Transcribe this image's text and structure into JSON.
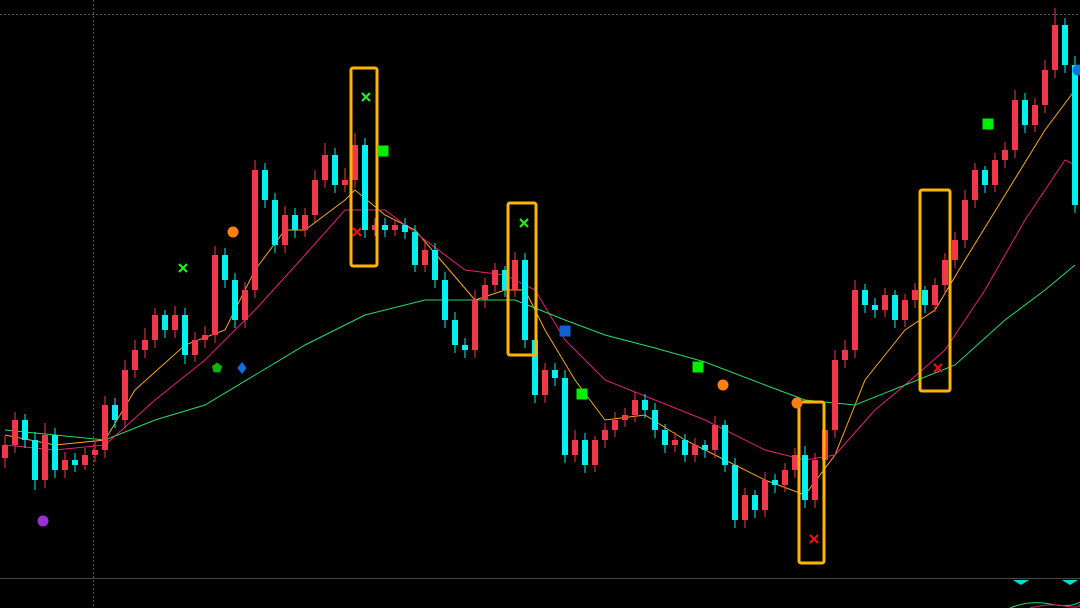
{
  "chart_data": {
    "type": "candlestick",
    "xlim": [
      -0.5,
      107.5
    ],
    "ylim": [
      0,
      608
    ],
    "up_color": "#f0384a",
    "down_color": "#00f0f0",
    "open": [
      150,
      163,
      188,
      168,
      128,
      173,
      138,
      148,
      143,
      153,
      158,
      203,
      188,
      238,
      258,
      268,
      293,
      278,
      293,
      253,
      268,
      273,
      353,
      328,
      288,
      318,
      438,
      408,
      363,
      393,
      378,
      393,
      428,
      453,
      423,
      428,
      463,
      378,
      383,
      378,
      383,
      376,
      343,
      358,
      328,
      288,
      263,
      258,
      308,
      323,
      338,
      318,
      348,
      268,
      213,
      238,
      230,
      153,
      168,
      143,
      168,
      178,
      188,
      193,
      208,
      198,
      178,
      163,
      168,
      153,
      163,
      158,
      183,
      143,
      88,
      113,
      98,
      128,
      123,
      138,
      153,
      108,
      148,
      178,
      248,
      258,
      318,
      303,
      298,
      313,
      288,
      308,
      318,
      303,
      323,
      348,
      368,
      408,
      438,
      423,
      448,
      458,
      508,
      483,
      503,
      538,
      583,
      543
    ],
    "high": [
      172,
      196,
      194,
      176,
      185,
      180,
      156,
      155,
      160,
      166,
      212,
      210,
      248,
      268,
      280,
      300,
      298,
      302,
      300,
      276,
      282,
      362,
      360,
      335,
      326,
      448,
      445,
      415,
      402,
      400,
      400,
      438,
      465,
      460,
      440,
      475,
      470,
      390,
      390,
      388,
      390,
      383,
      366,
      365,
      336,
      296,
      270,
      318,
      330,
      345,
      342,
      356,
      355,
      275,
      245,
      245,
      238,
      178,
      175,
      172,
      185,
      196,
      200,
      216,
      214,
      205,
      184,
      176,
      174,
      170,
      168,
      192,
      188,
      150,
      120,
      118,
      136,
      134,
      145,
      160,
      162,
      155,
      185,
      258,
      268,
      328,
      324,
      310,
      320,
      318,
      314,
      325,
      322,
      330,
      355,
      376,
      418,
      445,
      442,
      455,
      466,
      518,
      515,
      510,
      548,
      600,
      590,
      552
    ],
    "low": [
      140,
      155,
      160,
      118,
      120,
      130,
      130,
      136,
      138,
      146,
      150,
      180,
      180,
      230,
      250,
      260,
      270,
      270,
      244,
      246,
      260,
      265,
      320,
      280,
      280,
      310,
      400,
      355,
      355,
      370,
      371,
      386,
      420,
      415,
      416,
      420,
      370,
      372,
      371,
      372,
      369,
      336,
      336,
      320,
      280,
      255,
      250,
      250,
      300,
      316,
      311,
      311,
      260,
      205,
      205,
      222,
      145,
      146,
      135,
      136,
      160,
      171,
      181,
      186,
      190,
      170,
      155,
      156,
      146,
      146,
      150,
      150,
      136,
      80,
      80,
      90,
      91,
      115,
      116,
      130,
      100,
      100,
      140,
      170,
      240,
      250,
      295,
      290,
      291,
      280,
      281,
      300,
      295,
      296,
      315,
      340,
      360,
      400,
      415,
      416,
      440,
      450,
      475,
      476,
      495,
      530,
      535,
      395
    ],
    "close": [
      163,
      188,
      168,
      128,
      173,
      138,
      148,
      143,
      153,
      158,
      203,
      188,
      238,
      258,
      268,
      293,
      278,
      293,
      253,
      268,
      273,
      353,
      328,
      288,
      318,
      438,
      408,
      363,
      393,
      378,
      393,
      428,
      453,
      423,
      428,
      463,
      378,
      383,
      378,
      383,
      376,
      343,
      358,
      328,
      288,
      263,
      258,
      308,
      323,
      338,
      318,
      348,
      268,
      213,
      238,
      230,
      153,
      168,
      143,
      168,
      178,
      188,
      193,
      208,
      198,
      178,
      163,
      168,
      153,
      163,
      158,
      183,
      143,
      88,
      113,
      98,
      128,
      123,
      138,
      153,
      108,
      148,
      178,
      248,
      258,
      318,
      303,
      298,
      313,
      288,
      308,
      318,
      303,
      323,
      348,
      368,
      408,
      438,
      423,
      448,
      458,
      508,
      483,
      503,
      538,
      583,
      543,
      403
    ],
    "lines": [
      {
        "color": "#f5a623",
        "x": [
          0,
          5,
          10,
          13,
          18,
          22,
          25,
          28,
          30,
          34,
          35,
          38,
          41,
          44,
          47,
          50,
          52,
          54,
          57,
          60,
          64,
          68,
          72,
          76,
          80,
          83,
          86,
          90,
          93,
          96,
          100,
          104,
          107
        ],
        "values": [
          173,
          163,
          168,
          218,
          263,
          278,
          338,
          378,
          378,
          408,
          418,
          393,
          378,
          343,
          308,
          318,
          318,
          278,
          228,
          188,
          193,
          168,
          148,
          128,
          113,
          153,
          228,
          278,
          298,
          348,
          413,
          478,
          518
        ]
      },
      {
        "color": "#e0207a",
        "x": [
          0,
          5,
          10,
          15,
          20,
          25,
          30,
          34,
          38,
          42,
          46,
          50,
          53,
          56,
          60,
          65,
          70,
          76,
          80,
          83,
          87,
          90,
          94,
          98,
          102,
          106,
          107
        ],
        "values": [
          163,
          158,
          163,
          208,
          248,
          298,
          353,
          398,
          398,
          368,
          338,
          333,
          318,
          268,
          228,
          208,
          188,
          158,
          148,
          153,
          198,
          223,
          258,
          318,
          388,
          448,
          443
        ]
      },
      {
        "color": "#22dd66",
        "x": [
          0,
          10,
          15,
          20,
          25,
          30,
          36,
          42,
          46,
          51,
          56,
          60,
          65,
          70,
          76,
          80,
          85,
          90,
          95,
          100,
          104,
          107
        ],
        "values": [
          178,
          168,
          188,
          203,
          233,
          263,
          293,
          308,
          308,
          308,
          288,
          273,
          260,
          246,
          223,
          208,
          203,
          223,
          243,
          288,
          318,
          343
        ]
      }
    ],
    "markers": [
      {
        "shape": "cross",
        "color": "#22ee22",
        "x": 17.8,
        "y": 340
      },
      {
        "shape": "circle",
        "color": "#ff8010",
        "x": 22.8,
        "y": 376
      },
      {
        "shape": "pentagon",
        "color": "#10b010",
        "x": 21.2,
        "y": 240
      },
      {
        "shape": "diamond",
        "color": "#1070e0",
        "x": 23.7,
        "y": 240
      },
      {
        "shape": "circle",
        "color": "#9a30d0",
        "x": 3.8,
        "y": 87
      },
      {
        "shape": "cross",
        "color": "#22ee22",
        "x": 36.1,
        "y": 511
      },
      {
        "shape": "cross",
        "color": "#ee1111",
        "x": 35.2,
        "y": 376
      },
      {
        "shape": "square",
        "color": "#00ee00",
        "x": 37.8,
        "y": 457
      },
      {
        "shape": "cross",
        "color": "#22ee22",
        "x": 51.9,
        "y": 385
      },
      {
        "shape": "square",
        "color": "#1060d0",
        "x": 56,
        "y": 277
      },
      {
        "shape": "square",
        "color": "#00ee00",
        "x": 57.7,
        "y": 214
      },
      {
        "shape": "square",
        "color": "#00ee00",
        "x": 69.3,
        "y": 241
      },
      {
        "shape": "circle",
        "color": "#ff8010",
        "x": 71.8,
        "y": 223
      },
      {
        "shape": "circle",
        "color": "#ff8010",
        "x": 79.2,
        "y": 205
      },
      {
        "shape": "cross",
        "color": "#ee1111",
        "x": 80.9,
        "y": 69
      },
      {
        "shape": "cross",
        "color": "#ee1111",
        "x": 93.3,
        "y": 240
      },
      {
        "shape": "square",
        "color": "#00ee00",
        "x": 98.3,
        "y": 484
      },
      {
        "shape": "circle",
        "color": "#1070e0",
        "x": 107.3,
        "y": 538
      }
    ],
    "highlights": {
      "color": "#ffb400",
      "boxes": [
        {
          "x": [
            34.6,
            37.2
          ],
          "y": [
            540,
            342
          ]
        },
        {
          "x": [
            50.3,
            53.1
          ],
          "y": [
            405,
            253
          ]
        },
        {
          "x": [
            79.4,
            81.9
          ],
          "y": [
            206,
            45
          ]
        },
        {
          "x": [
            91.5,
            94.5
          ],
          "y": [
            418,
            217
          ]
        }
      ]
    }
  }
}
